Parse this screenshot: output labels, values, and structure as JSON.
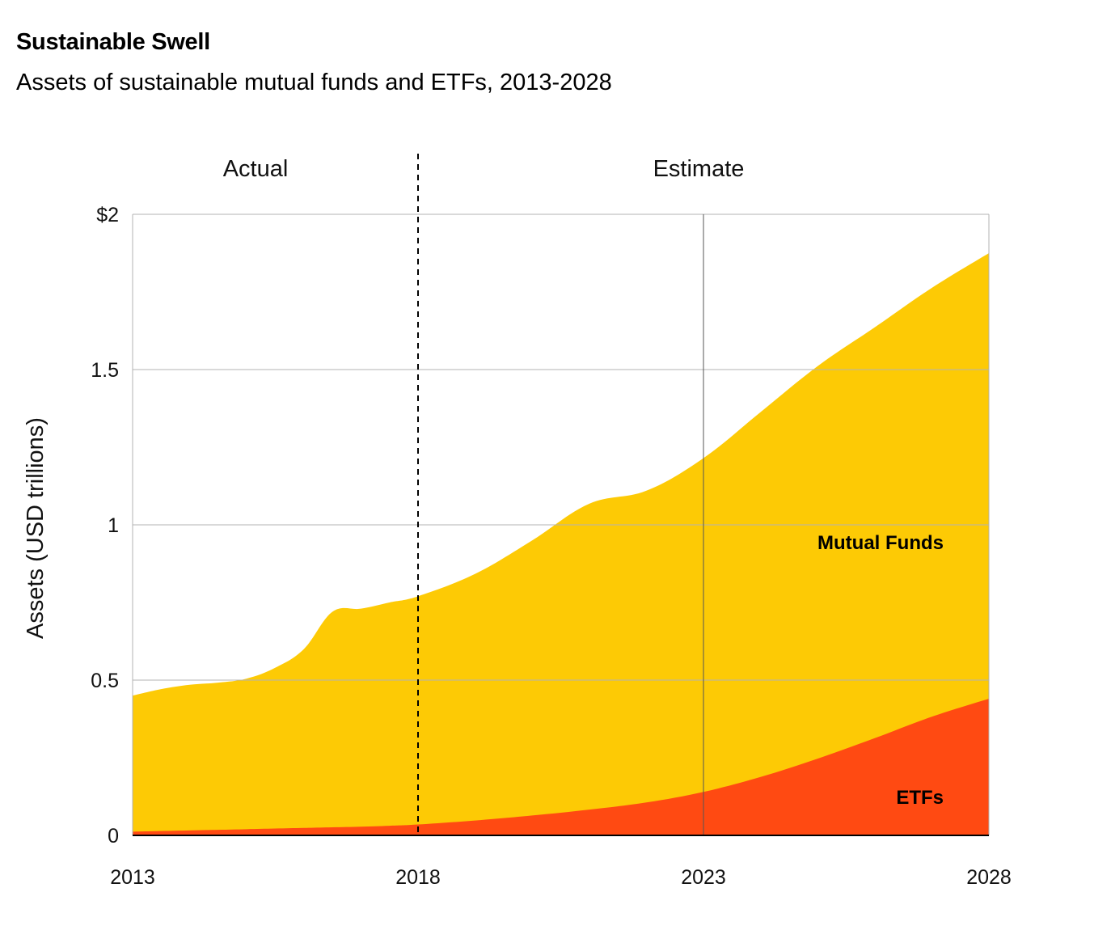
{
  "title": "Sustainable Swell",
  "subtitle": "Assets of sustainable mutual funds and ETFs, 2013-2028",
  "chart_data": {
    "type": "area",
    "stacked": true,
    "title": "Sustainable Swell",
    "subtitle": "Assets of sustainable mutual funds and ETFs, 2013-2028",
    "xlabel": "",
    "ylabel": "Assets (USD trillions)",
    "xlim": [
      2013,
      2028
    ],
    "ylim": [
      0,
      2
    ],
    "x_ticks": [
      "2013",
      "2018",
      "2023",
      "2028"
    ],
    "x_tick_values": [
      2013,
      2018,
      2023,
      2028
    ],
    "y_ticks": [
      "0",
      "0.5",
      "1",
      "1.5",
      "$2"
    ],
    "y_tick_values": [
      0,
      0.5,
      1,
      1.5,
      2
    ],
    "grid": true,
    "divider": {
      "x": 2018,
      "style": "dashed"
    },
    "phases": [
      {
        "label": "Actual",
        "x_center": 2015.1
      },
      {
        "label": "Estimate",
        "x_center": 2023
      }
    ],
    "x": [
      2013,
      2013.5,
      2014,
      2014.5,
      2015,
      2015.5,
      2016,
      2016.5,
      2017,
      2017.5,
      2018,
      2019,
      2020,
      2021,
      2022,
      2023,
      2024,
      2025,
      2026,
      2027,
      2028
    ],
    "series": [
      {
        "name": "ETFs",
        "color": "#FF4A12",
        "values": [
          0.012,
          0.014,
          0.016,
          0.018,
          0.02,
          0.022,
          0.024,
          0.026,
          0.028,
          0.031,
          0.035,
          0.048,
          0.064,
          0.083,
          0.106,
          0.14,
          0.188,
          0.247,
          0.313,
          0.382,
          0.44
        ]
      },
      {
        "name": "Mutual Funds",
        "color": "#FDCA05",
        "values": [
          0.438,
          0.457,
          0.469,
          0.474,
          0.485,
          0.518,
          0.576,
          0.694,
          0.702,
          0.719,
          0.735,
          0.794,
          0.886,
          0.985,
          1.004,
          1.075,
          1.175,
          1.264,
          1.323,
          1.381,
          1.435
        ]
      }
    ],
    "totals_shown": [
      0.45,
      0.471,
      0.485,
      0.492,
      0.505,
      0.54,
      0.6,
      0.72,
      0.73,
      0.75,
      0.77,
      0.842,
      0.95,
      1.068,
      1.11,
      1.215,
      1.363,
      1.511,
      1.636,
      1.763,
      1.875
    ]
  }
}
